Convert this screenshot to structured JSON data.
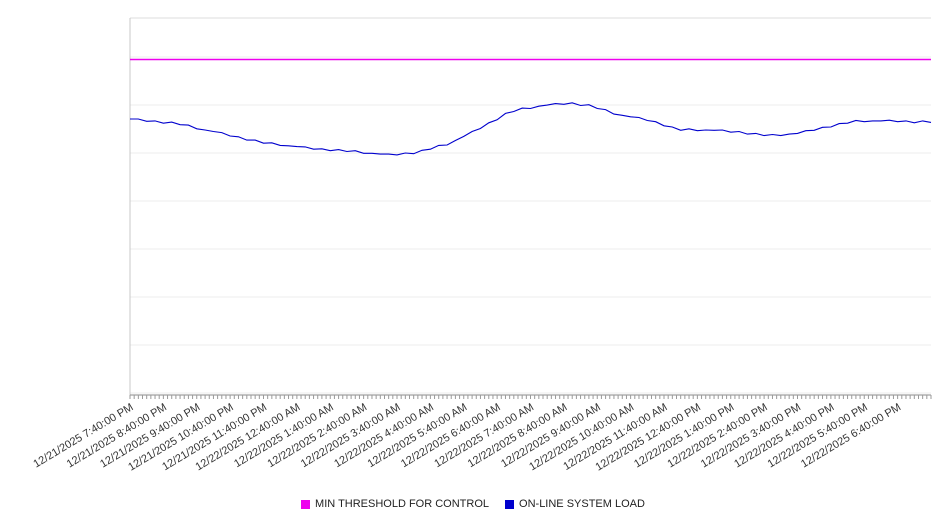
{
  "chart_data": {
    "type": "line",
    "title": "",
    "xlabel": "",
    "ylabel": "",
    "ylim": [
      0,
      100
    ],
    "y_axis_labels_visible": false,
    "grid": "horizontal",
    "legend_position": "bottom",
    "x_labels": [
      "12/21/2025 7:40:00 PM",
      "12/21/2025 8:40:00 PM",
      "12/21/2025 9:40:00 PM",
      "12/21/2025 10:40:00 PM",
      "12/21/2025 11:40:00 PM",
      "12/22/2025 12:40:00 AM",
      "12/22/2025 1:40:00 AM",
      "12/22/2025 2:40:00 AM",
      "12/22/2025 3:40:00 AM",
      "12/22/2025 4:40:00 AM",
      "12/22/2025 5:40:00 AM",
      "12/22/2025 6:40:00 AM",
      "12/22/2025 7:40:00 AM",
      "12/22/2025 8:40:00 AM",
      "12/22/2025 9:40:00 AM",
      "12/22/2025 10:40:00 AM",
      "12/22/2025 11:40:00 AM",
      "12/22/2025 12:40:00 PM",
      "12/22/2025 1:40:00 PM",
      "12/22/2025 2:40:00 PM",
      "12/22/2025 3:40:00 PM",
      "12/22/2025 4:40:00 PM",
      "12/22/2025 5:40:00 PM",
      "12/22/2025 6:40:00 PM"
    ],
    "series": [
      {
        "name": "MIN THRESHOLD FOR CONTROL",
        "color": "#ee00ee",
        "style": "constant",
        "value": 89
      },
      {
        "name": "ON-LINE SYSTEM LOAD",
        "color": "#0000cd",
        "style": "line",
        "values": [
          73.2,
          73.2,
          72.6,
          72.7,
          72.1,
          72.4,
          71.7,
          71.6,
          70.6,
          70.3,
          69.9,
          69.6,
          68.7,
          68.5,
          67.6,
          67.6,
          66.8,
          66.9,
          66.2,
          66.1,
          65.9,
          65.8,
          65.2,
          65.3,
          64.8,
          65.1,
          64.6,
          64.8,
          64.1,
          64.1,
          63.9,
          63.9,
          63.7,
          64.2,
          64.0,
          64.9,
          65.2,
          66.2,
          66.3,
          67.5,
          68.6,
          69.9,
          70.7,
          72.2,
          73.0,
          74.7,
          75.2,
          76.1,
          76.0,
          76.6,
          76.9,
          77.3,
          77.1,
          77.5,
          76.8,
          77.0,
          76.0,
          75.7,
          74.5,
          74.2,
          73.8,
          73.6,
          72.8,
          72.5,
          71.4,
          71.1,
          70.2,
          70.6,
          70.1,
          70.3,
          70.2,
          70.3,
          69.7,
          69.9,
          69.2,
          69.4,
          68.8,
          69.1,
          68.8,
          69.2,
          69.4,
          70.1,
          70.2,
          71.0,
          71.1,
          72.0,
          72.1,
          72.8,
          72.5,
          72.7,
          72.7,
          72.9,
          72.5,
          72.7,
          72.2,
          72.7,
          72.3
        ]
      }
    ]
  }
}
